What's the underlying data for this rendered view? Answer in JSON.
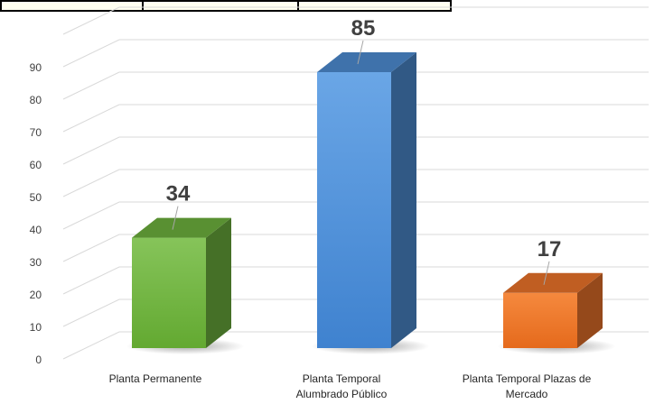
{
  "chart_data": {
    "type": "bar",
    "style": "3d-column",
    "title": "",
    "xlabel": "",
    "ylabel": "",
    "ylim": [
      0,
      90
    ],
    "yticks": [
      0,
      10,
      20,
      30,
      40,
      50,
      60,
      70,
      80,
      90
    ],
    "grid": true,
    "categories": [
      [
        "Planta Permanente"
      ],
      [
        "Planta Temporal",
        "Alumbrado Público"
      ],
      [
        "Planta Temporal Plazas de",
        "Mercado"
      ]
    ],
    "values": [
      34,
      85,
      17
    ],
    "data_labels": [
      "34",
      "85",
      "17"
    ],
    "colors": [
      "#6fb43f",
      "#4f8fd6",
      "#f0762b"
    ]
  }
}
